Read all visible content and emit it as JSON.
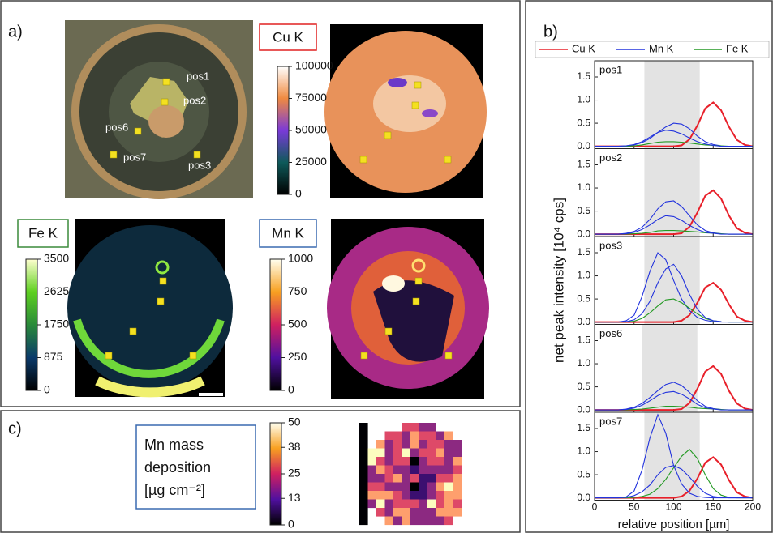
{
  "panel_labels": [
    "a)",
    "b)",
    "c)"
  ],
  "panel_a": {
    "positions": [
      "pos1",
      "pos2",
      "pos6",
      "pos7",
      "pos3"
    ],
    "maps": [
      {
        "title": "Cu K",
        "colorbar_ticks": [
          0,
          25000,
          50000,
          75000,
          100000
        ]
      },
      {
        "title": "Fe K",
        "colorbar_ticks": [
          0,
          875,
          1750,
          2625,
          3500
        ]
      },
      {
        "title": "Mn K",
        "colorbar_ticks": [
          0,
          250,
          500,
          750,
          1000
        ]
      }
    ]
  },
  "panel_b": {
    "xlabel": "relative position [µm]",
    "ylabel": "net peak intensity [10⁴ cps]"
  },
  "panel_c": {
    "title_lines": [
      "Mn mass",
      "deposition",
      "[µg cm⁻²]"
    ],
    "colorbar_ticks": [
      0,
      13,
      25,
      38,
      50
    ]
  },
  "chart_data": [
    {
      "type": "line",
      "title": "pos1",
      "shade": [
        63,
        133
      ],
      "x": [
        0,
        10,
        20,
        30,
        40,
        50,
        60,
        70,
        80,
        90,
        100,
        110,
        120,
        130,
        140,
        150,
        160,
        170,
        180,
        190,
        200
      ],
      "xlim": [
        0,
        200
      ],
      "xticks": [
        0,
        50,
        100,
        150,
        200
      ],
      "ylim": [
        -0.05,
        1.85
      ],
      "yticks": [
        {
          "value": 0,
          "label": "0.0"
        },
        0.5,
        {
          "value": 1,
          "label": "1.0"
        },
        1.5
      ],
      "series": [
        {
          "name": "Cu K",
          "color": "#e8202a",
          "values": [
            0,
            0,
            0,
            0,
            0,
            0,
            0,
            0,
            0,
            0,
            0,
            0.02,
            0.15,
            0.45,
            0.82,
            0.95,
            0.78,
            0.42,
            0.14,
            0.03,
            0
          ]
        },
        {
          "name": "Mn K",
          "color": "#2233dd",
          "values": [
            0,
            0,
            0,
            0,
            0.01,
            0.03,
            0.08,
            0.17,
            0.3,
            0.42,
            0.5,
            0.48,
            0.38,
            0.22,
            0.1,
            0.04,
            0.01,
            0,
            0,
            0,
            0
          ]
        },
        {
          "name": "Fe K",
          "color": "#229922",
          "values": [
            0,
            0,
            0,
            0,
            0,
            0.01,
            0.03,
            0.06,
            0.09,
            0.1,
            0.1,
            0.09,
            0.07,
            0.05,
            0.03,
            0.02,
            0.01,
            0,
            0,
            0,
            0
          ]
        },
        {
          "name": "Mn K",
          "color": "#2233dd",
          "values": [
            0,
            0,
            0,
            0,
            0.01,
            0.04,
            0.1,
            0.2,
            0.3,
            0.35,
            0.33,
            0.27,
            0.18,
            0.1,
            0.05,
            0.02,
            0,
            0,
            0,
            0,
            0
          ]
        }
      ]
    },
    {
      "type": "line",
      "title": "pos2",
      "shade": [
        63,
        133
      ],
      "x": [
        0,
        10,
        20,
        30,
        40,
        50,
        60,
        70,
        80,
        90,
        100,
        110,
        120,
        130,
        140,
        150,
        160,
        170,
        180,
        190,
        200
      ],
      "xlim": [
        0,
        200
      ],
      "xticks": [
        0,
        50,
        100,
        150,
        200
      ],
      "ylim": [
        -0.05,
        1.85
      ],
      "yticks": [
        {
          "value": 0,
          "label": "0.0"
        },
        0.5,
        {
          "value": 1,
          "label": "1.0"
        },
        1.5
      ],
      "series": [
        {
          "name": "Cu K",
          "color": "#e8202a",
          "values": [
            0,
            0,
            0,
            0,
            0,
            0,
            0,
            0,
            0,
            0,
            0,
            0.02,
            0.16,
            0.47,
            0.83,
            0.95,
            0.77,
            0.4,
            0.13,
            0.03,
            0
          ]
        },
        {
          "name": "Mn K",
          "color": "#2233dd",
          "values": [
            0,
            0,
            0,
            0,
            0.02,
            0.06,
            0.15,
            0.32,
            0.55,
            0.7,
            0.72,
            0.6,
            0.4,
            0.2,
            0.08,
            0.03,
            0.01,
            0,
            0,
            0,
            0
          ]
        },
        {
          "name": "Fe K",
          "color": "#229922",
          "values": [
            0,
            0,
            0,
            0,
            0,
            0.01,
            0.02,
            0.04,
            0.07,
            0.08,
            0.08,
            0.07,
            0.06,
            0.05,
            0.03,
            0.02,
            0.01,
            0,
            0,
            0,
            0
          ]
        },
        {
          "name": "Mn K",
          "color": "#2233dd",
          "values": [
            0,
            0,
            0,
            0,
            0.01,
            0.04,
            0.1,
            0.2,
            0.32,
            0.4,
            0.38,
            0.3,
            0.19,
            0.1,
            0.04,
            0.02,
            0,
            0,
            0,
            0,
            0
          ]
        }
      ]
    },
    {
      "type": "line",
      "title": "pos3",
      "shade": [
        63,
        133
      ],
      "x": [
        0,
        10,
        20,
        30,
        40,
        50,
        60,
        70,
        80,
        90,
        100,
        110,
        120,
        130,
        140,
        150,
        160,
        170,
        180,
        190,
        200
      ],
      "xlim": [
        0,
        200
      ],
      "xticks": [
        0,
        50,
        100,
        150,
        200
      ],
      "ylim": [
        -0.05,
        1.85
      ],
      "yticks": [
        {
          "value": 0,
          "label": "0.0"
        },
        0.5,
        {
          "value": 1,
          "label": "1.0"
        },
        1.5
      ],
      "series": [
        {
          "name": "Cu K",
          "color": "#e8202a",
          "values": [
            0,
            0,
            0,
            0,
            0,
            0,
            0,
            0,
            0,
            0,
            0,
            0.03,
            0.15,
            0.42,
            0.75,
            0.85,
            0.7,
            0.38,
            0.12,
            0.03,
            0
          ]
        },
        {
          "name": "Mn K",
          "color": "#2233dd",
          "values": [
            0,
            0,
            0,
            0,
            0.03,
            0.15,
            0.55,
            1.1,
            1.5,
            1.35,
            0.9,
            0.5,
            0.25,
            0.1,
            0.04,
            0.01,
            0,
            0,
            0,
            0,
            0
          ]
        },
        {
          "name": "Fe K",
          "color": "#229922",
          "values": [
            0,
            0,
            0,
            0,
            0,
            0.02,
            0.08,
            0.2,
            0.35,
            0.48,
            0.5,
            0.42,
            0.3,
            0.18,
            0.08,
            0.03,
            0.01,
            0,
            0,
            0,
            0
          ]
        },
        {
          "name": "Mn K",
          "color": "#2233dd",
          "values": [
            0,
            0,
            0,
            0,
            0.01,
            0.05,
            0.18,
            0.45,
            0.85,
            1.15,
            1.25,
            1.0,
            0.6,
            0.28,
            0.1,
            0.03,
            0.01,
            0,
            0,
            0,
            0
          ]
        }
      ]
    },
    {
      "type": "line",
      "title": "pos6",
      "shade": [
        60,
        130
      ],
      "x": [
        0,
        10,
        20,
        30,
        40,
        50,
        60,
        70,
        80,
        90,
        100,
        110,
        120,
        130,
        140,
        150,
        160,
        170,
        180,
        190,
        200
      ],
      "xlim": [
        0,
        200
      ],
      "xticks": [
        0,
        50,
        100,
        150,
        200
      ],
      "ylim": [
        -0.05,
        1.85
      ],
      "yticks": [
        {
          "value": 0,
          "label": "0.0"
        },
        0.5,
        {
          "value": 1,
          "label": "1.0"
        },
        1.5
      ],
      "series": [
        {
          "name": "Cu K",
          "color": "#e8202a",
          "values": [
            0,
            0,
            0,
            0,
            0,
            0,
            0,
            0,
            0,
            0,
            0,
            0.02,
            0.15,
            0.46,
            0.83,
            0.95,
            0.78,
            0.41,
            0.14,
            0.03,
            0
          ]
        },
        {
          "name": "Mn K",
          "color": "#2233dd",
          "values": [
            0,
            0,
            0,
            0,
            0.02,
            0.06,
            0.14,
            0.27,
            0.42,
            0.55,
            0.6,
            0.53,
            0.38,
            0.2,
            0.08,
            0.03,
            0.01,
            0,
            0,
            0,
            0
          ]
        },
        {
          "name": "Fe K",
          "color": "#229922",
          "values": [
            0,
            0,
            0,
            0,
            0,
            0.01,
            0.02,
            0.04,
            0.06,
            0.08,
            0.08,
            0.07,
            0.06,
            0.04,
            0.03,
            0.02,
            0.01,
            0,
            0,
            0,
            0
          ]
        },
        {
          "name": "Mn K",
          "color": "#2233dd",
          "values": [
            0,
            0,
            0,
            0,
            0.01,
            0.04,
            0.1,
            0.2,
            0.31,
            0.38,
            0.4,
            0.34,
            0.24,
            0.12,
            0.05,
            0.02,
            0,
            0,
            0,
            0,
            0
          ]
        }
      ]
    },
    {
      "type": "line",
      "title": "pos7",
      "shade": [
        63,
        133
      ],
      "x": [
        0,
        10,
        20,
        30,
        40,
        50,
        60,
        70,
        80,
        90,
        100,
        110,
        120,
        130,
        140,
        150,
        160,
        170,
        180,
        190,
        200
      ],
      "xlim": [
        0,
        200
      ],
      "xticks": [
        0,
        50,
        100,
        150,
        200
      ],
      "ylim": [
        -0.05,
        1.85
      ],
      "yticks": [
        {
          "value": 0,
          "label": "0.0"
        },
        0.5,
        {
          "value": 1,
          "label": "1.0"
        },
        1.5
      ],
      "series": [
        {
          "name": "Cu K",
          "color": "#e8202a",
          "values": [
            0,
            0,
            0,
            0,
            0,
            0,
            0,
            0,
            0,
            0,
            0,
            0.03,
            0.15,
            0.42,
            0.76,
            0.88,
            0.72,
            0.38,
            0.12,
            0.03,
            0
          ]
        },
        {
          "name": "Mn K",
          "color": "#2233dd",
          "values": [
            0,
            0,
            0,
            0,
            0.02,
            0.15,
            0.6,
            1.3,
            1.8,
            1.4,
            0.7,
            0.3,
            0.1,
            0.03,
            0.01,
            0,
            0,
            0,
            0,
            0,
            0
          ]
        },
        {
          "name": "Fe K",
          "color": "#229922",
          "values": [
            0,
            0,
            0,
            0,
            0,
            0.01,
            0.03,
            0.08,
            0.2,
            0.4,
            0.65,
            0.9,
            1.05,
            0.85,
            0.5,
            0.2,
            0.06,
            0.01,
            0,
            0,
            0
          ]
        },
        {
          "name": "Mn K",
          "color": "#2233dd",
          "values": [
            0,
            0,
            0,
            0,
            0.01,
            0.05,
            0.13,
            0.28,
            0.5,
            0.66,
            0.7,
            0.62,
            0.45,
            0.25,
            0.1,
            0.03,
            0.01,
            0,
            0,
            0,
            0
          ]
        }
      ]
    }
  ]
}
